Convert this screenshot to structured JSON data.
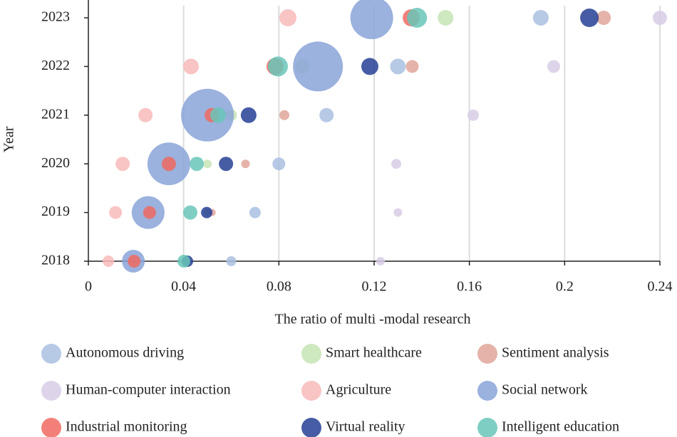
{
  "chart_data": {
    "type": "bubble",
    "x_label": "The ratio of multi -modal research",
    "y_label": "Year",
    "categories": [
      "2018",
      "2019",
      "2020",
      "2021",
      "2022",
      "2023"
    ],
    "xlim": [
      0,
      0.24
    ],
    "xticks": [
      0,
      0.04,
      0.08,
      0.12,
      0.16,
      0.2,
      0.24
    ],
    "grid": true,
    "series": [
      {
        "name": "Autonomous driving",
        "color": "#a9bfe0",
        "values": [
          0.06,
          0.07,
          0.08,
          0.1,
          0.13,
          0.19
        ],
        "sizes": [
          7,
          8,
          9,
          10,
          11,
          11
        ]
      },
      {
        "name": "Smart healthcare",
        "color": "#c5e4b5",
        "values": [
          0.04,
          0.05,
          0.05,
          0.06,
          0.09,
          0.15
        ],
        "sizes": [
          5,
          5,
          6,
          8,
          10,
          11
        ]
      },
      {
        "name": "Sentiment analysis",
        "color": "#e0a69a",
        "values": [
          0.0416,
          0.052,
          0.066,
          0.0823,
          0.136,
          0.2164
        ],
        "sizes": [
          5,
          5,
          6,
          7,
          9,
          10
        ]
      },
      {
        "name": "Human-computer interaction",
        "color": "#d8cce6",
        "values": [
          0.1227,
          0.13,
          0.1293,
          0.1616,
          0.1954,
          0.24
        ],
        "sizes": [
          6,
          6,
          7,
          8,
          9,
          10
        ]
      },
      {
        "name": "Agriculture",
        "color": "#f8baba",
        "values": [
          0.0084,
          0.0114,
          0.0144,
          0.024,
          0.0431,
          0.0838
        ],
        "sizes": [
          8,
          9,
          10,
          10,
          11,
          12
        ]
      },
      {
        "name": "Social network",
        "color": "#8aa3d8",
        "values": [
          0.0189,
          0.0251,
          0.0338,
          0.05,
          0.0964,
          0.119
        ],
        "sizes": [
          16,
          23,
          30,
          37,
          35,
          30
        ]
      },
      {
        "name": "Industrial monitoring",
        "color": "#f06a62",
        "values": [
          0.0192,
          0.0257,
          0.0338,
          0.0518,
          0.0784,
          0.1356
        ],
        "sizes": [
          9,
          9,
          10,
          10,
          12,
          12
        ]
      },
      {
        "name": "Virtual reality",
        "color": "#263f94",
        "values": [
          0.0416,
          0.0497,
          0.0578,
          0.0673,
          0.1182,
          0.2104
        ],
        "sizes": [
          8,
          8,
          10,
          11,
          12,
          13
        ]
      },
      {
        "name": "Intelligent education",
        "color": "#68c6b8",
        "values": [
          0.0401,
          0.0428,
          0.0455,
          0.0545,
          0.0796,
          0.138
        ],
        "sizes": [
          9,
          10,
          10,
          11,
          14,
          14
        ]
      }
    ]
  }
}
